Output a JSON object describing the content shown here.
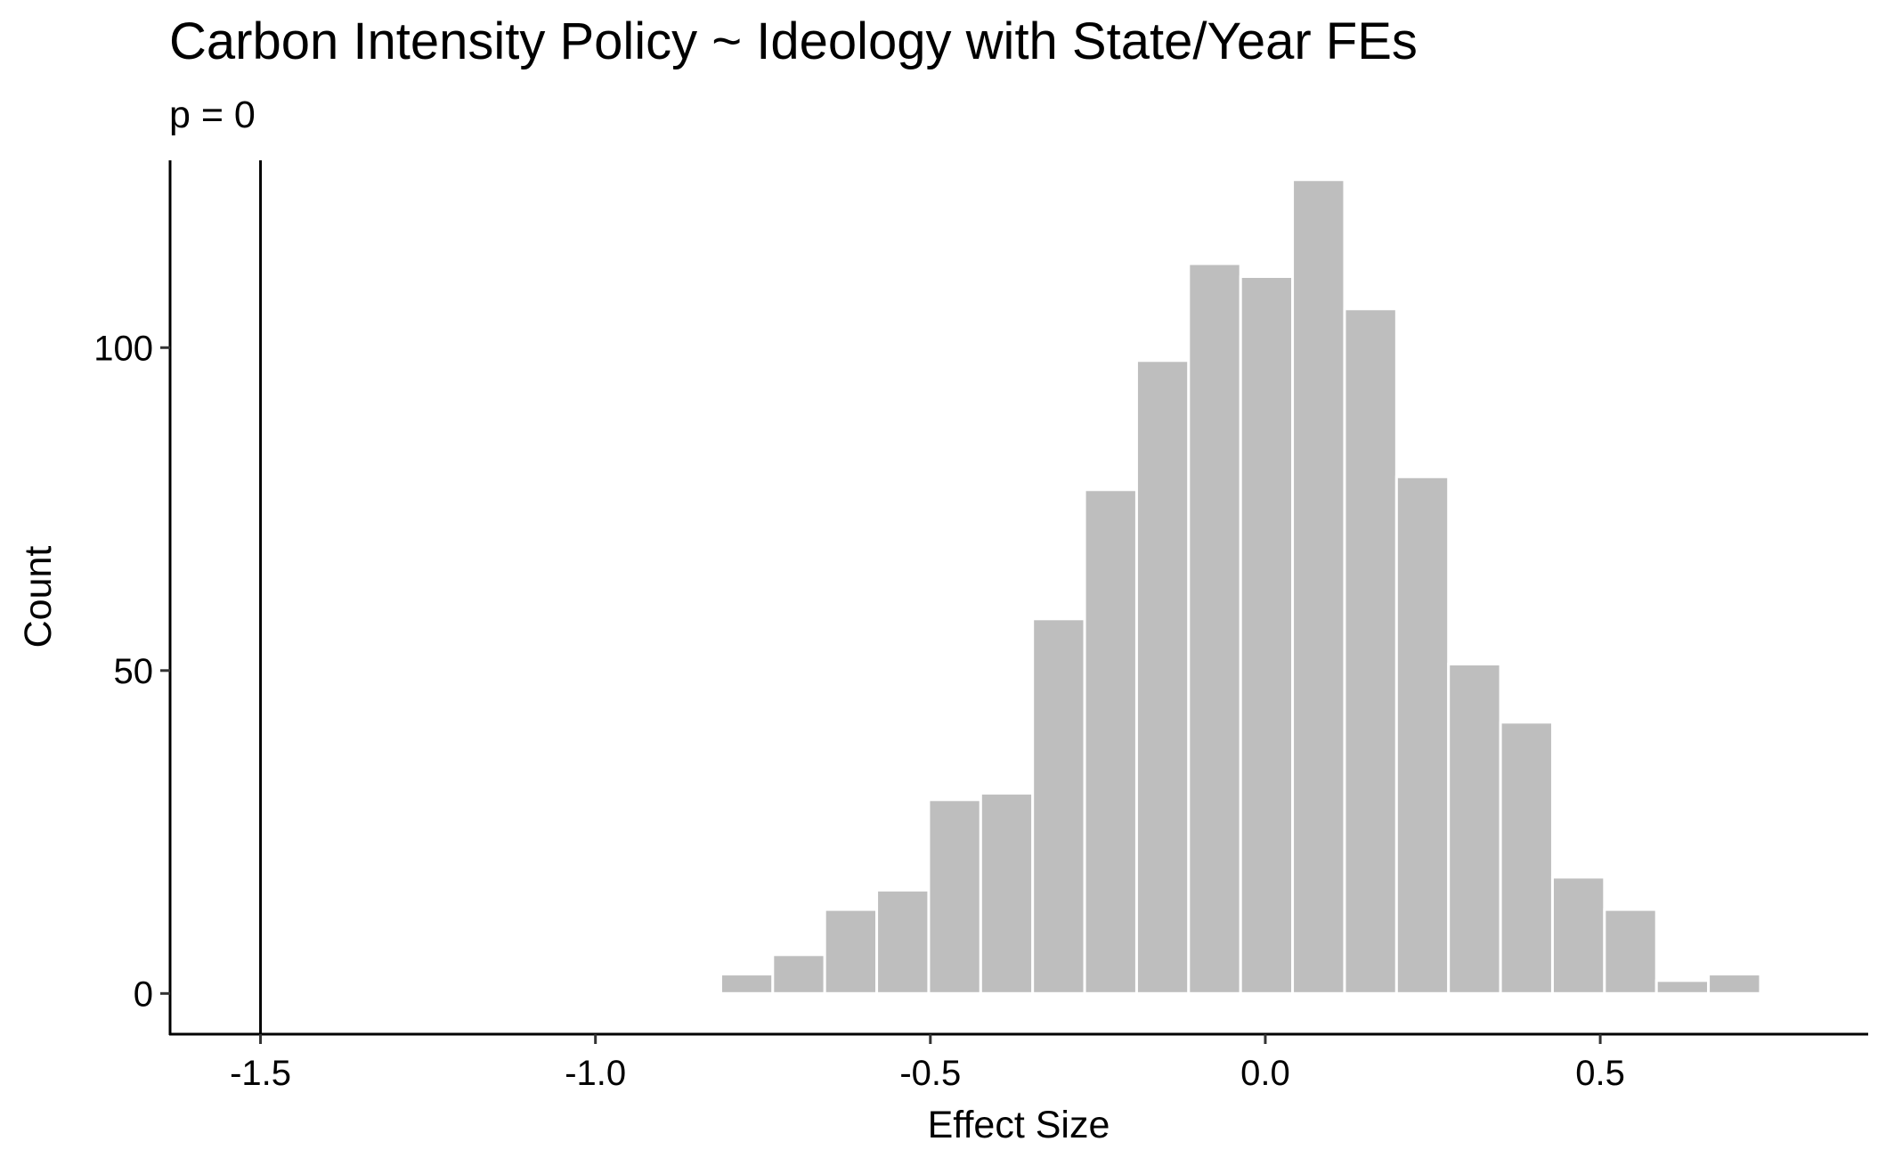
{
  "chart_data": {
    "type": "bar",
    "title": "Carbon Intensity Policy ~ Ideology with State/Year FEs",
    "subtitle": "p = 0",
    "xlabel": "Effect Size",
    "ylabel": "Count",
    "xlim": [
      -1.635,
      0.9
    ],
    "ylim": [
      -6.3,
      129
    ],
    "x_ticks": [
      -1.5,
      -1.0,
      -0.5,
      0.0,
      0.5
    ],
    "x_tick_labels": [
      "-1.5",
      "-1.0",
      "-0.5",
      "0.0",
      "0.5"
    ],
    "y_ticks": [
      0,
      50,
      100
    ],
    "y_tick_labels": [
      "0",
      "50",
      "100"
    ],
    "bin_width": 0.0776,
    "bins": [
      {
        "start": -0.8905,
        "end": -0.8129,
        "count": 0.3
      },
      {
        "start": -0.8129,
        "end": -0.7353,
        "count": 3
      },
      {
        "start": -0.7353,
        "end": -0.6577,
        "count": 6
      },
      {
        "start": -0.6577,
        "end": -0.5801,
        "count": 13
      },
      {
        "start": -0.5801,
        "end": -0.5025,
        "count": 16
      },
      {
        "start": -0.5025,
        "end": -0.4249,
        "count": 30
      },
      {
        "start": -0.4249,
        "end": -0.3473,
        "count": 31
      },
      {
        "start": -0.3473,
        "end": -0.2697,
        "count": 58
      },
      {
        "start": -0.2697,
        "end": -0.1921,
        "count": 78
      },
      {
        "start": -0.1921,
        "end": -0.1145,
        "count": 98
      },
      {
        "start": -0.1145,
        "end": -0.0369,
        "count": 113
      },
      {
        "start": -0.0369,
        "end": 0.0407,
        "count": 111
      },
      {
        "start": 0.0407,
        "end": 0.1183,
        "count": 126
      },
      {
        "start": 0.1183,
        "end": 0.1959,
        "count": 106
      },
      {
        "start": 0.1959,
        "end": 0.2735,
        "count": 80
      },
      {
        "start": 0.2735,
        "end": 0.3511,
        "count": 51
      },
      {
        "start": 0.3511,
        "end": 0.4287,
        "count": 42
      },
      {
        "start": 0.4287,
        "end": 0.5063,
        "count": 18
      },
      {
        "start": 0.5063,
        "end": 0.5839,
        "count": 13
      },
      {
        "start": 0.5839,
        "end": 0.6615,
        "count": 2
      },
      {
        "start": 0.6615,
        "end": 0.7391,
        "count": 3
      },
      {
        "start": 0.7391,
        "end": 0.8167,
        "count": 0.3
      }
    ],
    "reference_line_x": -1.5,
    "bar_fill": "#bebebe",
    "bar_outline": "#ffffff",
    "grid": false,
    "legend": "none"
  }
}
